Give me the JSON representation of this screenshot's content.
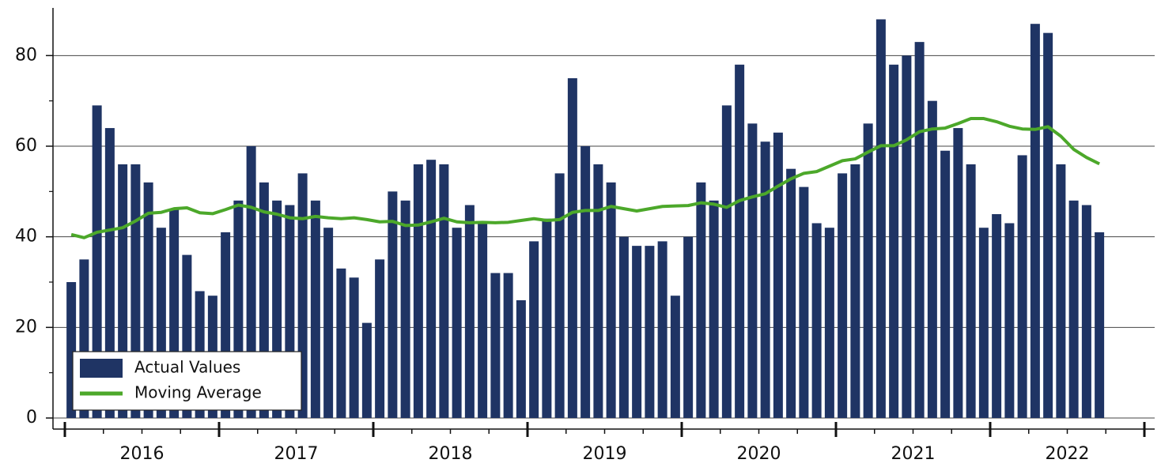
{
  "chart_data": {
    "type": "bar",
    "categories": [
      null,
      null,
      null,
      null,
      null,
      null,
      "2016",
      null,
      null,
      null,
      null,
      null,
      null,
      null,
      null,
      null,
      null,
      null,
      "2017",
      null,
      null,
      null,
      null,
      null,
      null,
      null,
      null,
      null,
      null,
      null,
      "2018",
      null,
      null,
      null,
      null,
      null,
      null,
      null,
      null,
      null,
      null,
      null,
      "2019",
      null,
      null,
      null,
      null,
      null,
      null,
      null,
      null,
      null,
      null,
      null,
      "2020",
      null,
      null,
      null,
      null,
      null,
      null,
      null,
      null,
      null,
      null,
      null,
      "2021",
      null,
      null,
      null,
      null,
      null,
      null,
      null,
      null,
      null,
      null,
      null,
      "2022",
      null,
      null
    ],
    "series": [
      {
        "name": "Actual Values",
        "type": "bar",
        "color": "#1f3464",
        "values": [
          30,
          35,
          69,
          64,
          56,
          56,
          52,
          42,
          46,
          36,
          28,
          27,
          41,
          48,
          60,
          52,
          48,
          47,
          54,
          48,
          42,
          33,
          31,
          21,
          35,
          50,
          48,
          56,
          57,
          56,
          42,
          47,
          43,
          32,
          32,
          26,
          39,
          44,
          54,
          75,
          60,
          56,
          52,
          40,
          38,
          38,
          39,
          27,
          40,
          52,
          48,
          69,
          78,
          65,
          61,
          63,
          55,
          51,
          43,
          42,
          54,
          56,
          65,
          88,
          78,
          80,
          83,
          70,
          59,
          64,
          56,
          42,
          45,
          43,
          58,
          87,
          85,
          56,
          48,
          47,
          41
        ]
      },
      {
        "name": "Moving Average",
        "type": "line",
        "color": "#4ca82a",
        "values": [
          40.5,
          39.8,
          41,
          41.5,
          42,
          43.5,
          45.2,
          45.4,
          46.2,
          46.4,
          45.3,
          45.1,
          46,
          47,
          46.5,
          45.5,
          45,
          44.2,
          44,
          44.5,
          44.2,
          44,
          44.2,
          43.8,
          43.3,
          43.4,
          42.5,
          42.6,
          43.3,
          44.1,
          43.3,
          43.1,
          43.2,
          43.1,
          43.2,
          43.6,
          44,
          43.6,
          43.8,
          45.4,
          45.8,
          45.8,
          46.7,
          46.2,
          45.7,
          46.2,
          46.7,
          46.8,
          46.9,
          47.5,
          47.2,
          46.5,
          48,
          48.8,
          49.5,
          51.2,
          52.8,
          54,
          54.4,
          55.6,
          56.8,
          57.2,
          58.7,
          60.1,
          60.1,
          61.4,
          63.2,
          63.8,
          64,
          65,
          66.1,
          66.1,
          65.4,
          64.4,
          63.8,
          63.7,
          64.3,
          62.2,
          59.3,
          57.5,
          56.1
        ]
      }
    ],
    "ylim": [
      0,
      90
    ],
    "yticks": [
      0,
      20,
      40,
      60,
      80
    ],
    "yminorticks": [
      10,
      30,
      50,
      70
    ],
    "grid": true,
    "legend": "lower-left"
  }
}
